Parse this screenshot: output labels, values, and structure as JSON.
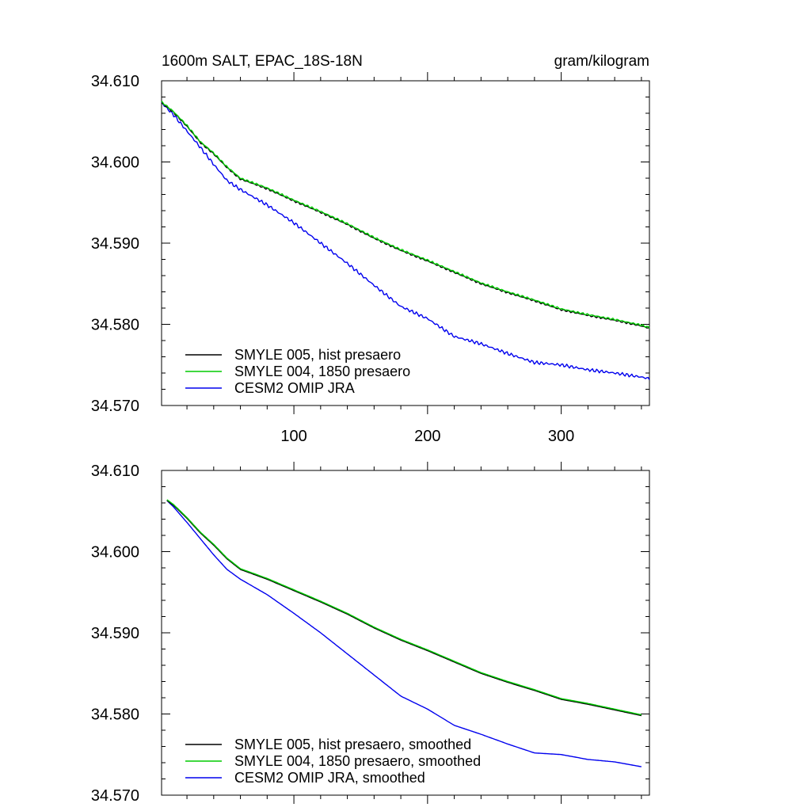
{
  "chart_data": [
    {
      "type": "line",
      "title": "1600m SALT, EPAC_18S-18N",
      "units": "gram/kilogram",
      "xlim": [
        1,
        366
      ],
      "ylim": [
        34.57,
        34.61
      ],
      "x_ticks": [
        100,
        200,
        300
      ],
      "x_tick_labels": [
        "100",
        "200",
        "300"
      ],
      "y_ticks": [
        34.57,
        34.58,
        34.59,
        34.6,
        34.61
      ],
      "y_tick_labels": [
        "34.570",
        "34.580",
        "34.590",
        "34.600",
        "34.610"
      ],
      "legend_position": "bottom-left",
      "x": [
        1,
        10,
        20,
        30,
        40,
        50,
        60,
        80,
        100,
        120,
        140,
        160,
        180,
        200,
        220,
        240,
        260,
        280,
        300,
        320,
        340,
        360,
        366
      ],
      "series": [
        {
          "name": "SMYLE 005, hist presaero",
          "color": "#000000",
          "values": [
            34.6073,
            34.6061,
            34.6044,
            34.6024,
            34.601,
            34.5993,
            34.5979,
            34.5967,
            34.5952,
            34.5938,
            34.5923,
            34.5906,
            34.5891,
            34.5878,
            34.5864,
            34.585,
            34.5839,
            34.5829,
            34.5818,
            34.5811,
            34.5805,
            34.5798,
            34.5795
          ]
        },
        {
          "name": "SMYLE 004, 1850 presaero",
          "color": "#00cc00",
          "values": [
            34.6074,
            34.6062,
            34.6045,
            34.6025,
            34.6011,
            34.5994,
            34.598,
            34.5968,
            34.5953,
            34.5939,
            34.5924,
            34.5907,
            34.5892,
            34.5879,
            34.5865,
            34.5851,
            34.584,
            34.583,
            34.5819,
            34.5812,
            34.5806,
            34.5799,
            34.5796
          ]
        },
        {
          "name": "CESM2 OMIP JRA",
          "color": "#0000ee",
          "values": [
            34.6073,
            34.6058,
            34.6038,
            34.6018,
            34.5997,
            34.5977,
            34.5966,
            34.5947,
            34.5925,
            34.59,
            34.5875,
            34.5848,
            34.5822,
            34.5807,
            34.5785,
            34.5776,
            34.5764,
            34.5753,
            34.575,
            34.5744,
            34.574,
            34.5735,
            34.5733
          ]
        }
      ]
    },
    {
      "type": "line",
      "title": "",
      "units": "",
      "xlim": [
        1,
        366
      ],
      "ylim": [
        34.57,
        34.61
      ],
      "x_ticks": [
        100,
        200,
        300
      ],
      "x_tick_labels": [],
      "y_ticks": [
        34.57,
        34.58,
        34.59,
        34.6,
        34.61
      ],
      "y_tick_labels": [
        "34.570",
        "34.580",
        "34.590",
        "34.600",
        "34.610"
      ],
      "legend_position": "bottom-left",
      "x": [
        5,
        10,
        20,
        30,
        40,
        50,
        60,
        80,
        100,
        120,
        140,
        160,
        180,
        200,
        220,
        240,
        260,
        280,
        300,
        320,
        340,
        360
      ],
      "series": [
        {
          "name": "SMYLE 005, hist presaero, smoothed",
          "color": "#000000",
          "values": [
            34.6063,
            34.6057,
            34.6041,
            34.6023,
            34.6008,
            34.5991,
            34.5978,
            34.5966,
            34.5952,
            34.5938,
            34.5923,
            34.5906,
            34.5891,
            34.5878,
            34.5864,
            34.585,
            34.5839,
            34.5829,
            34.5818,
            34.5812,
            34.5805,
            34.5798
          ]
        },
        {
          "name": "SMYLE 004, 1850 presaero, smoothed",
          "color": "#00cc00",
          "values": [
            34.6064,
            34.6058,
            34.6042,
            34.6024,
            34.6009,
            34.5992,
            34.5979,
            34.5967,
            34.5953,
            34.5939,
            34.5924,
            34.5907,
            34.5892,
            34.5879,
            34.5865,
            34.5851,
            34.584,
            34.583,
            34.5819,
            34.5813,
            34.5806,
            34.5799
          ]
        },
        {
          "name": "CESM2 OMIP JRA, smoothed",
          "color": "#0000ee",
          "values": [
            34.6063,
            34.6055,
            34.6036,
            34.6016,
            34.5996,
            34.5978,
            34.5966,
            34.5947,
            34.5924,
            34.59,
            34.5874,
            34.5848,
            34.5822,
            34.5806,
            34.5786,
            34.5775,
            34.5763,
            34.5752,
            34.575,
            34.5744,
            34.5741,
            34.5735
          ]
        }
      ]
    }
  ]
}
